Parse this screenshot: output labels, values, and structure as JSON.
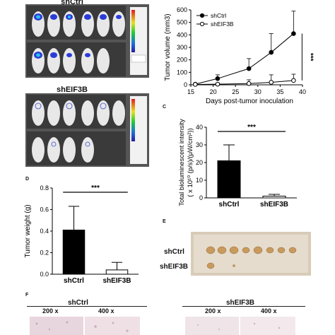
{
  "panels": {
    "c_letter": "C",
    "d_letter": "D",
    "e_letter": "E",
    "f_letter": "F"
  },
  "imaging": {
    "group1_label": "shCtrl",
    "group2_label": "shEIF3B"
  },
  "photo": {
    "row1_label": "shCtrl",
    "row2_label": "shEIF3B"
  },
  "histology": {
    "group1_label": "shCtrl",
    "group2_label": "shEIF3B",
    "mag1": "200 x",
    "mag2": "400 x",
    "mag3": "200 x",
    "mag4": "400 x"
  },
  "colors": {
    "bar_ctrl": "#000000",
    "bar_eif3b": "#ffffff",
    "line": "#000000",
    "significance": "***"
  },
  "chart_data": [
    {
      "id": "growth",
      "type": "line",
      "xlabel": "Days post-tumor inoculation",
      "ylabel": "Tumor volume (mm3)",
      "xlim": [
        15,
        40
      ],
      "ylim": [
        0,
        600
      ],
      "xticks": [
        15,
        20,
        25,
        30,
        35,
        40
      ],
      "yticks": [
        0,
        100,
        200,
        300,
        400,
        500,
        600
      ],
      "legend_position": "top-left",
      "series": [
        {
          "name": "shCtrl",
          "x": [
            16,
            21,
            28,
            33,
            38
          ],
          "y": [
            5,
            50,
            130,
            260,
            410
          ],
          "err": [
            3,
            30,
            80,
            150,
            180
          ],
          "marker": "filled-circle"
        },
        {
          "name": "shEIF3B",
          "x": [
            16,
            21,
            28,
            33,
            38
          ],
          "y": [
            3,
            5,
            10,
            20,
            35
          ],
          "err": [
            2,
            10,
            30,
            60,
            50
          ],
          "marker": "open-circle"
        }
      ],
      "annotation": "***"
    },
    {
      "id": "bioluminescence",
      "type": "bar",
      "categories": [
        "shCtrl",
        "shEIF3B"
      ],
      "values": [
        21,
        1
      ],
      "errors": [
        9,
        1
      ],
      "ylabel": "Total bioluminescent intensity (x 10^10 (p/s)/(μW/cm²))",
      "ylim": [
        0,
        40
      ],
      "yticks": [
        0,
        10,
        20,
        30,
        40
      ],
      "annotation": "***"
    },
    {
      "id": "weight",
      "type": "bar",
      "categories": [
        "shCtrl",
        "shEIF3B"
      ],
      "values": [
        0.41,
        0.04
      ],
      "errors": [
        0.22,
        0.07
      ],
      "ylabel": "Tumor weight (g)",
      "ylim": [
        0,
        0.8
      ],
      "yticks": [
        0.0,
        0.2,
        0.4,
        0.6,
        0.8
      ],
      "annotation": "***"
    }
  ]
}
